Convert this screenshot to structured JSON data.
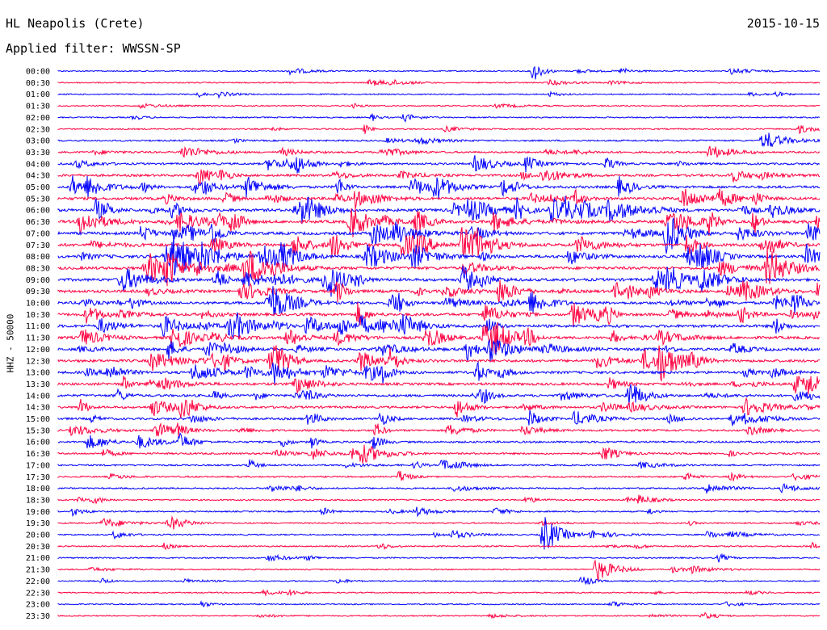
{
  "header": {
    "station": "HL Neapolis (Crete)",
    "date": "2015-10-15",
    "filter": "Applied filter: WWSSN-SP"
  },
  "chart_data": {
    "type": "line",
    "ylabel": "HHZ - 50000",
    "colors": {
      "blue": "#0000ff",
      "red": "#ff0040"
    },
    "row_labels": [
      "00:00",
      "00:30",
      "01:00",
      "01:30",
      "02:00",
      "02:30",
      "03:00",
      "03:30",
      "04:00",
      "04:30",
      "05:00",
      "05:30",
      "06:00",
      "06:30",
      "07:00",
      "07:30",
      "08:00",
      "08:30",
      "09:00",
      "09:30",
      "10:00",
      "10:30",
      "11:00",
      "11:30",
      "12:00",
      "12:30",
      "13:00",
      "13:30",
      "14:00",
      "14:30",
      "15:00",
      "15:30",
      "16:00",
      "16:30",
      "17:00",
      "17:30",
      "18:00",
      "18:30",
      "19:00",
      "19:30",
      "20:00",
      "20:30",
      "21:00",
      "21:30",
      "22:00",
      "22:30",
      "23:00",
      "23:30"
    ],
    "row_activity": [
      0.5,
      0.6,
      0.6,
      0.5,
      0.7,
      0.9,
      1.2,
      1.6,
      2.0,
      2.4,
      2.8,
      3.2,
      3.4,
      3.5,
      3.5,
      3.5,
      3.6,
      3.4,
      3.4,
      3.4,
      3.2,
      3.2,
      3.2,
      3.2,
      3.2,
      3.0,
      3.0,
      2.8,
      2.6,
      2.4,
      2.2,
      1.8,
      1.8,
      1.6,
      1.2,
      1.1,
      1.1,
      1.0,
      0.9,
      0.9,
      0.8,
      0.8,
      0.8,
      0.6,
      0.6,
      0.6,
      0.6,
      0.5
    ]
  }
}
